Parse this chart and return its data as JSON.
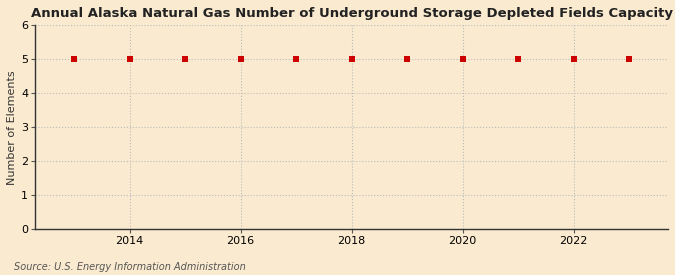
{
  "title": "Annual Alaska Natural Gas Number of Underground Storage Depleted Fields Capacity",
  "ylabel": "Number of Elements",
  "source": "Source: U.S. Energy Information Administration",
  "background_color": "#faebd0",
  "x_values": [
    2013,
    2014,
    2015,
    2016,
    2017,
    2018,
    2019,
    2020,
    2021,
    2022,
    2023
  ],
  "y_values": [
    5,
    5,
    5,
    5,
    5,
    5,
    5,
    5,
    5,
    5,
    5
  ],
  "marker_color": "#cc0000",
  "marker": "s",
  "marker_size": 16,
  "xlim": [
    2012.3,
    2023.7
  ],
  "ylim": [
    0,
    6
  ],
  "yticks": [
    0,
    1,
    2,
    3,
    4,
    5,
    6
  ],
  "xticks": [
    2014,
    2016,
    2018,
    2020,
    2022
  ],
  "grid_color": "#bbbbbb",
  "grid_linestyle": ":",
  "title_fontsize": 9.5,
  "label_fontsize": 8,
  "tick_fontsize": 8,
  "source_fontsize": 7
}
